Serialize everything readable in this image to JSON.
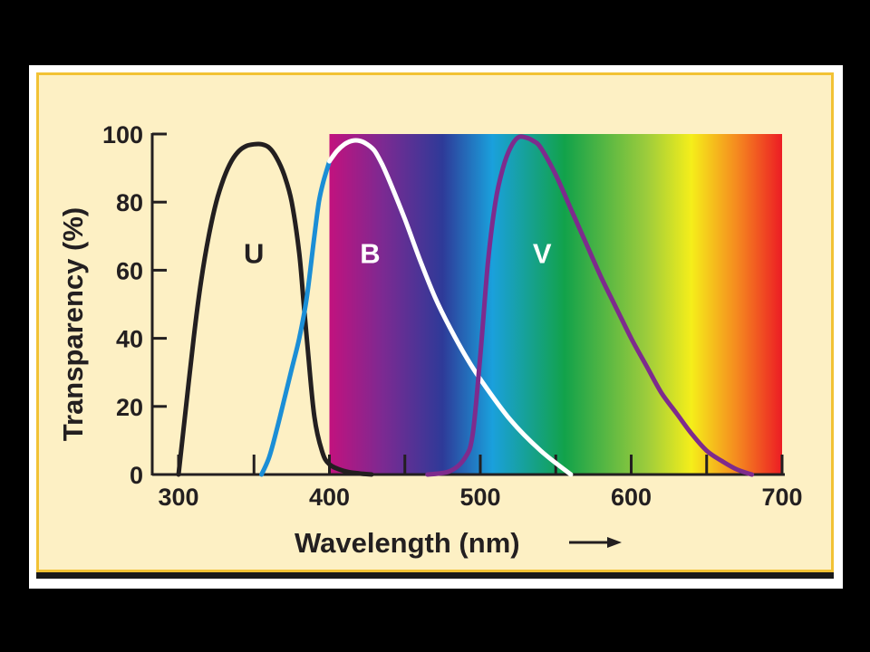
{
  "chart_data": {
    "type": "line",
    "title": "",
    "xlabel": "Wavelength (nm)",
    "ylabel": "Transparency (%)",
    "xlim": [
      300,
      700
    ],
    "ylim": [
      0,
      100
    ],
    "x_ticks": [
      300,
      400,
      500,
      600,
      700
    ],
    "y_ticks": [
      0,
      20,
      40,
      60,
      80,
      100
    ],
    "x_minor_ticks": [
      350,
      450,
      550,
      650
    ],
    "spectrum_background": {
      "x_range": [
        400,
        700
      ],
      "colors": [
        "#c2127e",
        "#7b2a92",
        "#2e3a98",
        "#1aa0dc",
        "#12a24a",
        "#f5ee1a",
        "#ec1c24"
      ]
    },
    "grid": false,
    "series": [
      {
        "name": "U",
        "color": "#231f20",
        "label_at": {
          "x": 350,
          "y": 65
        },
        "x": [
          300,
          305,
          310,
          315,
          320,
          325,
          330,
          335,
          340,
          345,
          350,
          355,
          360,
          365,
          370,
          375,
          380,
          383,
          386,
          390,
          395,
          400,
          410,
          420,
          428
        ],
        "y": [
          0,
          20,
          40,
          57,
          70,
          80,
          87,
          92,
          95,
          96.5,
          97,
          97,
          96,
          93,
          88,
          80,
          65,
          50,
          35,
          17,
          7,
          3,
          1,
          0.3,
          0
        ]
      },
      {
        "name": "B",
        "color": "#ffffff",
        "label_at": {
          "x": 427,
          "y": 65
        },
        "x": [
          355,
          360,
          365,
          370,
          375,
          380,
          385,
          390,
          393,
          396,
          400,
          405,
          410,
          415,
          420,
          425,
          430,
          435,
          440,
          450,
          460,
          470,
          480,
          490,
          500,
          520,
          540,
          560
        ],
        "y": [
          0,
          5,
          13,
          22,
          31,
          40,
          52,
          70,
          80,
          86,
          92,
          95,
          97,
          98,
          98,
          97,
          95,
          91,
          86,
          75,
          63,
          52,
          43,
          35,
          28,
          16,
          7,
          0
        ]
      },
      {
        "name": "V",
        "color": "#7e2b8d",
        "label_at": {
          "x": 541,
          "y": 65
        },
        "x": [
          465,
          480,
          490,
          495,
          500,
          505,
          510,
          515,
          520,
          525,
          530,
          535,
          540,
          550,
          560,
          570,
          580,
          590,
          600,
          610,
          620,
          630,
          640,
          650,
          660,
          670,
          680
        ],
        "y": [
          0,
          1,
          5,
          12,
          35,
          62,
          80,
          90,
          96,
          99,
          99,
          98,
          96,
          88,
          78,
          68,
          58,
          49,
          40,
          32,
          24,
          18,
          12,
          7,
          4,
          1.5,
          0
        ]
      }
    ]
  },
  "annotations": {
    "arrow": "right-arrow"
  }
}
